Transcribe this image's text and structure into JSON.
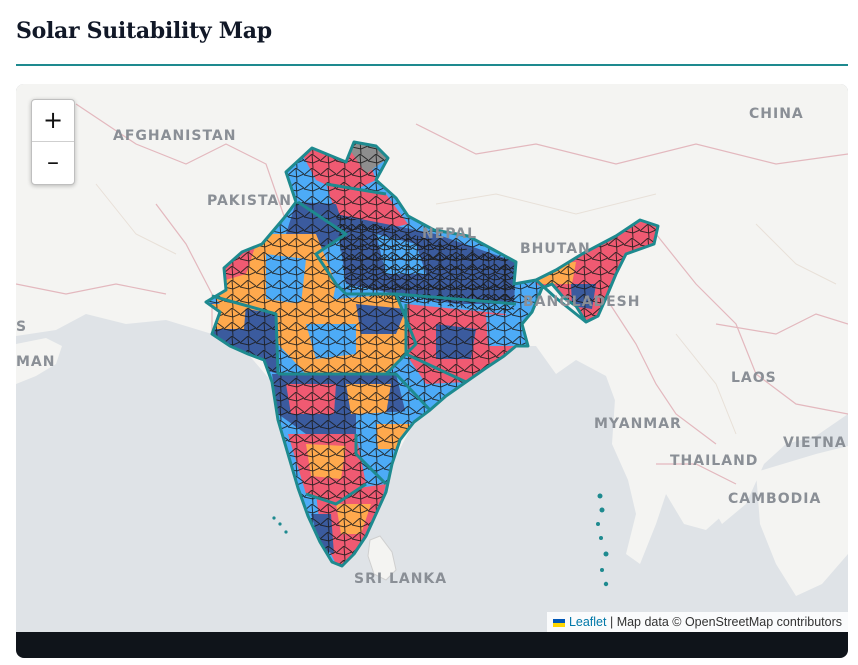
{
  "page": {
    "title": "Solar Suitability Map"
  },
  "map": {
    "zoom_in_label": "+",
    "zoom_out_label": "–",
    "labels": {
      "china": "CHINA",
      "afghanistan": "AFGHANISTAN",
      "pakistan": "PAKISTAN",
      "nepal": "NEPAL",
      "bhutan": "BHUTAN",
      "bangladesh": "BANGLADESH",
      "oman": "MAN",
      "iran": "S",
      "laos": "LAOS",
      "myanmar": "MYANMAR",
      "thailand": "THAILAND",
      "vietnam": "VIETNA",
      "cambodia": "CAMBODIA",
      "sri_lanka": "SRI LANKA"
    },
    "colors": {
      "high": "#f05a72",
      "medium_high": "#ffa94d",
      "medium": "#4dabf7",
      "low": "#3b5b9e",
      "no_data": "#8e8e8e",
      "state_border": "#1e8a8f",
      "district_border": "#1a1a1a"
    }
  },
  "attribution": {
    "leaflet_link": "Leaflet",
    "separator": " | ",
    "text": "Map data © OpenStreetMap contributors"
  }
}
